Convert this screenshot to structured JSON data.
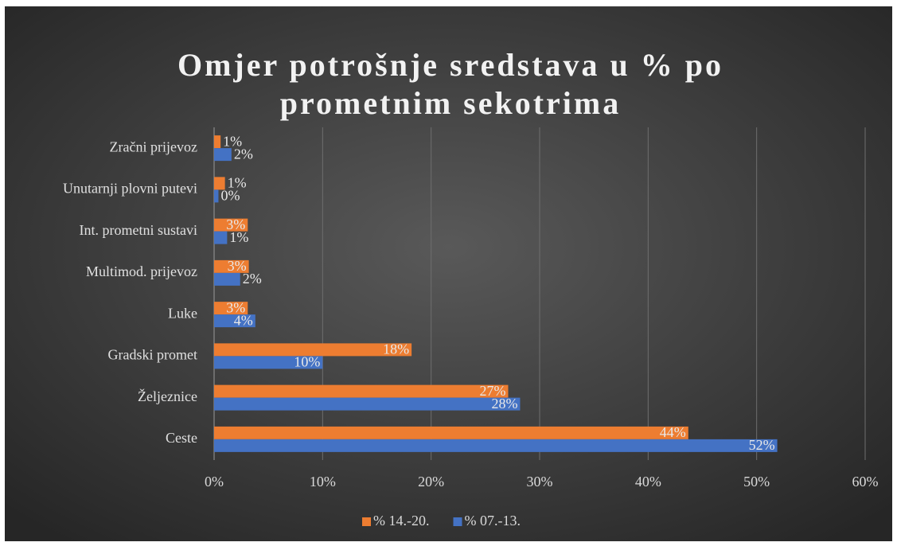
{
  "chart_data": {
    "type": "bar",
    "orientation": "horizontal",
    "title": "Omjer potrošnje sredstava u % po prometnim sekotrima",
    "categories": [
      "Ceste",
      "Željeznice",
      "Gradski promet",
      "Luke",
      "Multimod. prijevoz",
      "Int. prometni sustavi",
      "Unutarnji plovni putevi",
      "Zračni prijevoz"
    ],
    "series": [
      {
        "name": "% 14.-20.",
        "color": "#ed7d31",
        "values": [
          43.7,
          27.1,
          18.2,
          3.1,
          3.2,
          3.1,
          1.0,
          0.6
        ],
        "value_labels": [
          "44%",
          "27%",
          "18%",
          "3%",
          "3%",
          "3%",
          "1%",
          "1%"
        ]
      },
      {
        "name": "% 07.-13.",
        "color": "#4472c4",
        "values": [
          51.9,
          28.2,
          10.0,
          3.8,
          2.4,
          1.2,
          0.4,
          1.6
        ],
        "value_labels": [
          "52%",
          "28%",
          "10%",
          "4%",
          "2%",
          "1%",
          "0%",
          "2%"
        ]
      }
    ],
    "xlim": [
      0,
      60
    ],
    "xticks": [
      {
        "value": 0,
        "label": "0%"
      },
      {
        "value": 10,
        "label": "10%"
      },
      {
        "value": 20,
        "label": "20%"
      },
      {
        "value": 30,
        "label": "30%"
      },
      {
        "value": 40,
        "label": "40%"
      },
      {
        "value": 50,
        "label": "50%"
      },
      {
        "value": 60,
        "label": "60%"
      }
    ],
    "grid": true,
    "legend": "bottom"
  }
}
